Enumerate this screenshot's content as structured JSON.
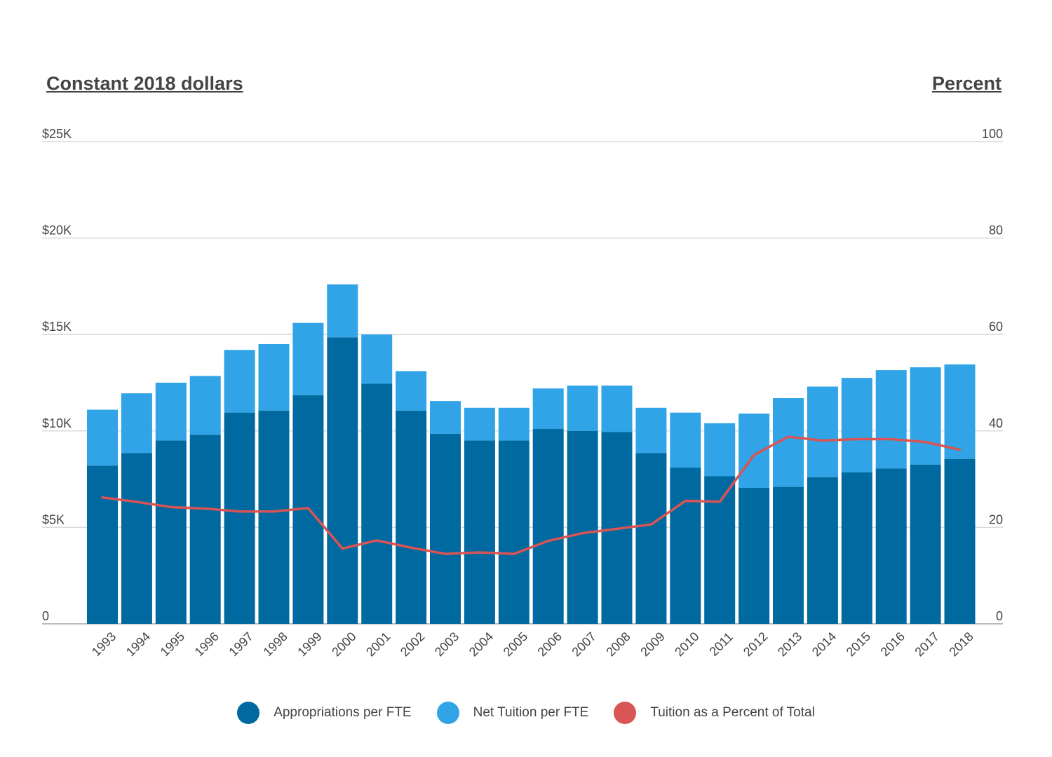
{
  "chart_data": {
    "type": "bar",
    "stacked": true,
    "y_left_label": "Constant 2018 dollars",
    "y_right_label": "Percent",
    "y_left_ticks": [
      "0",
      "$5K",
      "$10K",
      "$15K",
      "$20K",
      "$25K"
    ],
    "y_right_ticks": [
      "0",
      "20",
      "40",
      "60",
      "80",
      "100"
    ],
    "ylim_left": [
      0,
      25000
    ],
    "ylim_right": [
      0,
      100
    ],
    "grid": true,
    "legend_position": "bottom",
    "categories": [
      "1993",
      "1994",
      "1995",
      "1996",
      "1997",
      "1998",
      "1999",
      "2000",
      "2001",
      "2002",
      "2003",
      "2004",
      "2005",
      "2006",
      "2007",
      "2008",
      "2009",
      "2010",
      "2011",
      "2012",
      "2013",
      "2014",
      "2015",
      "2016",
      "2017",
      "2018"
    ],
    "series": [
      {
        "name": "Appropriations per FTE",
        "type": "bar",
        "axis": "left",
        "color": "#006aa0",
        "values": [
          8200,
          8850,
          9500,
          9800,
          10950,
          11050,
          11850,
          14850,
          12450,
          11050,
          9850,
          9500,
          9500,
          10100,
          10000,
          9950,
          8850,
          8100,
          7650,
          7050,
          7100,
          7600,
          7850,
          8050,
          8250,
          8550
        ]
      },
      {
        "name": "Net Tuition per FTE",
        "type": "bar",
        "axis": "left",
        "color": "#30a4e6",
        "values": [
          2900,
          3100,
          3000,
          3050,
          3250,
          3450,
          3750,
          2750,
          2550,
          2050,
          1700,
          1700,
          1700,
          2100,
          2350,
          2400,
          2350,
          2850,
          2750,
          3850,
          4600,
          4700,
          4900,
          5100,
          5050,
          4900
        ]
      },
      {
        "name": "Tuition as a Percent of Total",
        "type": "line",
        "axis": "right",
        "color": "#d95454",
        "values": [
          26.2,
          25.3,
          24.2,
          23.9,
          23.3,
          23.3,
          24.0,
          15.6,
          17.3,
          15.8,
          14.5,
          14.8,
          14.5,
          17.2,
          18.8,
          19.7,
          20.6,
          25.5,
          25.3,
          35.0,
          38.8,
          38.0,
          38.3,
          38.3,
          37.7,
          36.1
        ]
      }
    ]
  }
}
